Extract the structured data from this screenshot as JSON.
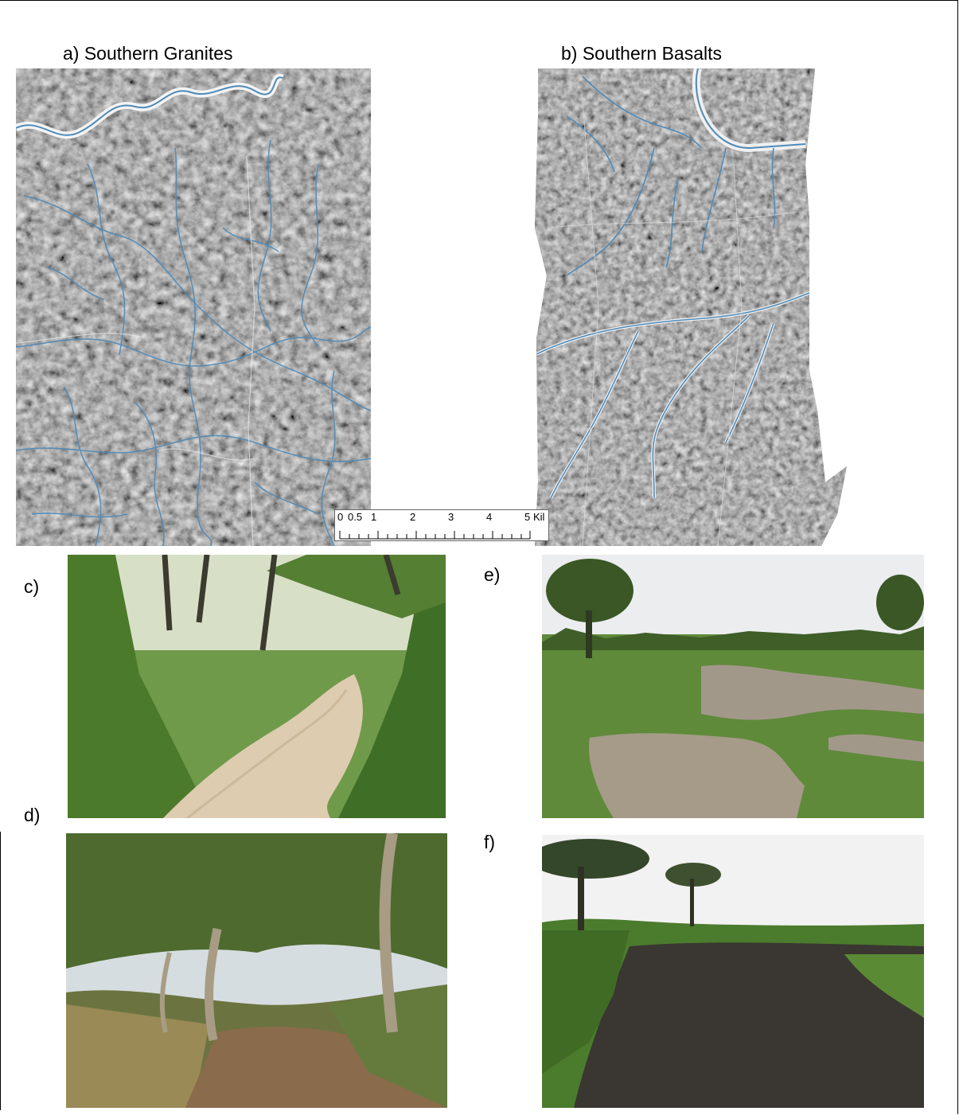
{
  "panels": {
    "a": {
      "label": "a) Southern Granites"
    },
    "b": {
      "label": "b) Southern Basalts"
    },
    "c": {
      "label": "c)"
    },
    "d": {
      "label": "d)"
    },
    "e": {
      "label": "e)"
    },
    "f": {
      "label": "f)"
    }
  },
  "scalebar": {
    "ticks": [
      "0",
      "0.5",
      "1",
      "2",
      "3",
      "4",
      "5"
    ],
    "unit": "Kil"
  },
  "colors": {
    "drainage": "#4f8ab8",
    "sand": "#d9c7ad",
    "vegetation": "#4f7d2e",
    "water": "#a49a86",
    "mud": "#3a3631",
    "sky": "#eceef0"
  }
}
